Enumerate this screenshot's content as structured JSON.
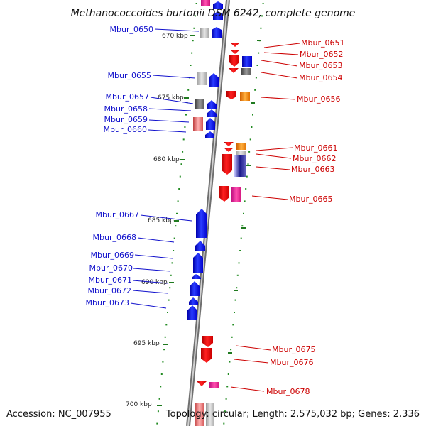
{
  "title": "Methanococcoides burtonii DSM 6242, complete genome",
  "accession": "Accession: NC_007955",
  "topology": "Topology: circular; Length: 2,575,032 bp; Genes: 2,336",
  "colors": {
    "backbone": "#8a8a8a",
    "tick": "#228b22",
    "left_label": "#1111cc",
    "right_label": "#cc0000"
  },
  "kbp_markers": [
    "670 kbp",
    "675 kbp",
    "680 kbp",
    "685 kbp",
    "690 kbp",
    "695 kbp",
    "700 kbp"
  ],
  "left_genes": [
    "Mbur_0650",
    "Mbur_0655",
    "Mbur_0657",
    "Mbur_0658",
    "Mbur_0659",
    "Mbur_0660",
    "Mbur_0667",
    "Mbur_0668",
    "Mbur_0669",
    "Mbur_0670",
    "Mbur_0671",
    "Mbur_0672",
    "Mbur_0673"
  ],
  "right_genes": [
    "Mbur_0651",
    "Mbur_0652",
    "Mbur_0653",
    "Mbur_0654",
    "Mbur_0656",
    "Mbur_0661",
    "Mbur_0662",
    "Mbur_0663",
    "Mbur_0665",
    "Mbur_0675",
    "Mbur_0676",
    "Mbur_0678"
  ]
}
